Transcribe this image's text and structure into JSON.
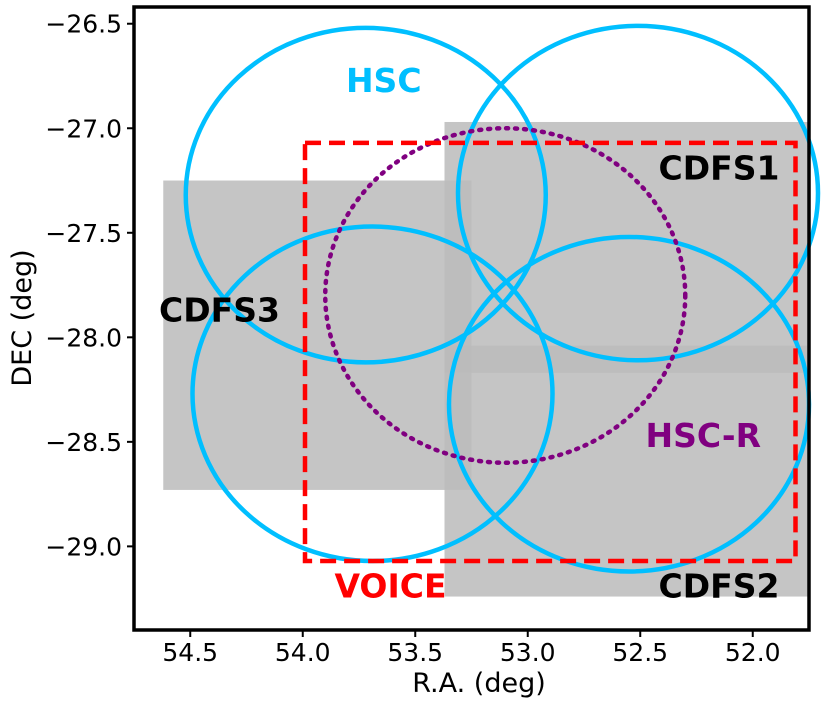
{
  "chart_data": {
    "type": "scatter",
    "title": "",
    "xlabel": "R.A. (deg)",
    "ylabel": "DEC (deg)",
    "xlim": [
      54.75,
      51.75
    ],
    "ylim": [
      -29.4,
      -26.42
    ],
    "x_ticks": [
      54.5,
      54.0,
      53.5,
      53.0,
      52.5,
      52.0
    ],
    "x_tick_labels": [
      "54.5",
      "54.0",
      "53.5",
      "53.0",
      "52.5",
      "52.0"
    ],
    "y_ticks": [
      -26.5,
      -27.0,
      -27.5,
      -28.0,
      -28.5,
      -29.0
    ],
    "y_tick_labels": [
      "−26.5",
      "−27.0",
      "−27.5",
      "−28.0",
      "−28.5",
      "−29.0"
    ],
    "grid": false,
    "colors": {
      "hsc": "#00bfff",
      "hsc_r": "#800080",
      "voice": "#ff0000",
      "cdfs": "#bbbbbb",
      "text": "#000000"
    },
    "regions": {
      "cdfs1": {
        "label": "CDFS1",
        "ra_min": 51.75,
        "ra_max": 53.37,
        "dec_min": -28.17,
        "dec_max": -26.97
      },
      "cdfs2": {
        "label": "CDFS2",
        "ra_min": 51.75,
        "ra_max": 53.37,
        "dec_min": -29.24,
        "dec_max": -28.04
      },
      "cdfs3": {
        "label": "CDFS3",
        "ra_min": 53.25,
        "ra_max": 54.62,
        "dec_min": -28.73,
        "dec_max": -27.25
      },
      "voice": {
        "label": "VOICE",
        "ra_min": 51.81,
        "ra_max": 53.99,
        "dec_min": -29.07,
        "dec_max": -27.07
      }
    },
    "hsc_circles": [
      {
        "ra": 53.72,
        "dec": -27.32,
        "radius": 0.8
      },
      {
        "ra": 52.51,
        "dec": -27.31,
        "radius": 0.8
      },
      {
        "ra": 53.69,
        "dec": -28.27,
        "radius": 0.8
      },
      {
        "ra": 52.55,
        "dec": -28.32,
        "radius": 0.8
      }
    ],
    "hsc_r_circle": {
      "ra": 53.1,
      "dec": -27.8,
      "radius": 0.8
    },
    "annotations": {
      "hsc": {
        "text": "HSC",
        "ra": 53.64,
        "dec": -26.78
      },
      "hsc_r": {
        "text": "HSC-R",
        "ra": 52.22,
        "dec": -28.48
      },
      "voice": {
        "text": "VOICE",
        "ra": 53.61,
        "dec": -29.2
      },
      "cdfs1": {
        "text": "CDFS1",
        "ra": 52.15,
        "dec": -27.2
      },
      "cdfs2": {
        "text": "CDFS2",
        "ra": 52.15,
        "dec": -29.2
      },
      "cdfs3": {
        "text": "CDFS3",
        "ra": 54.37,
        "dec": -27.88
      }
    }
  }
}
